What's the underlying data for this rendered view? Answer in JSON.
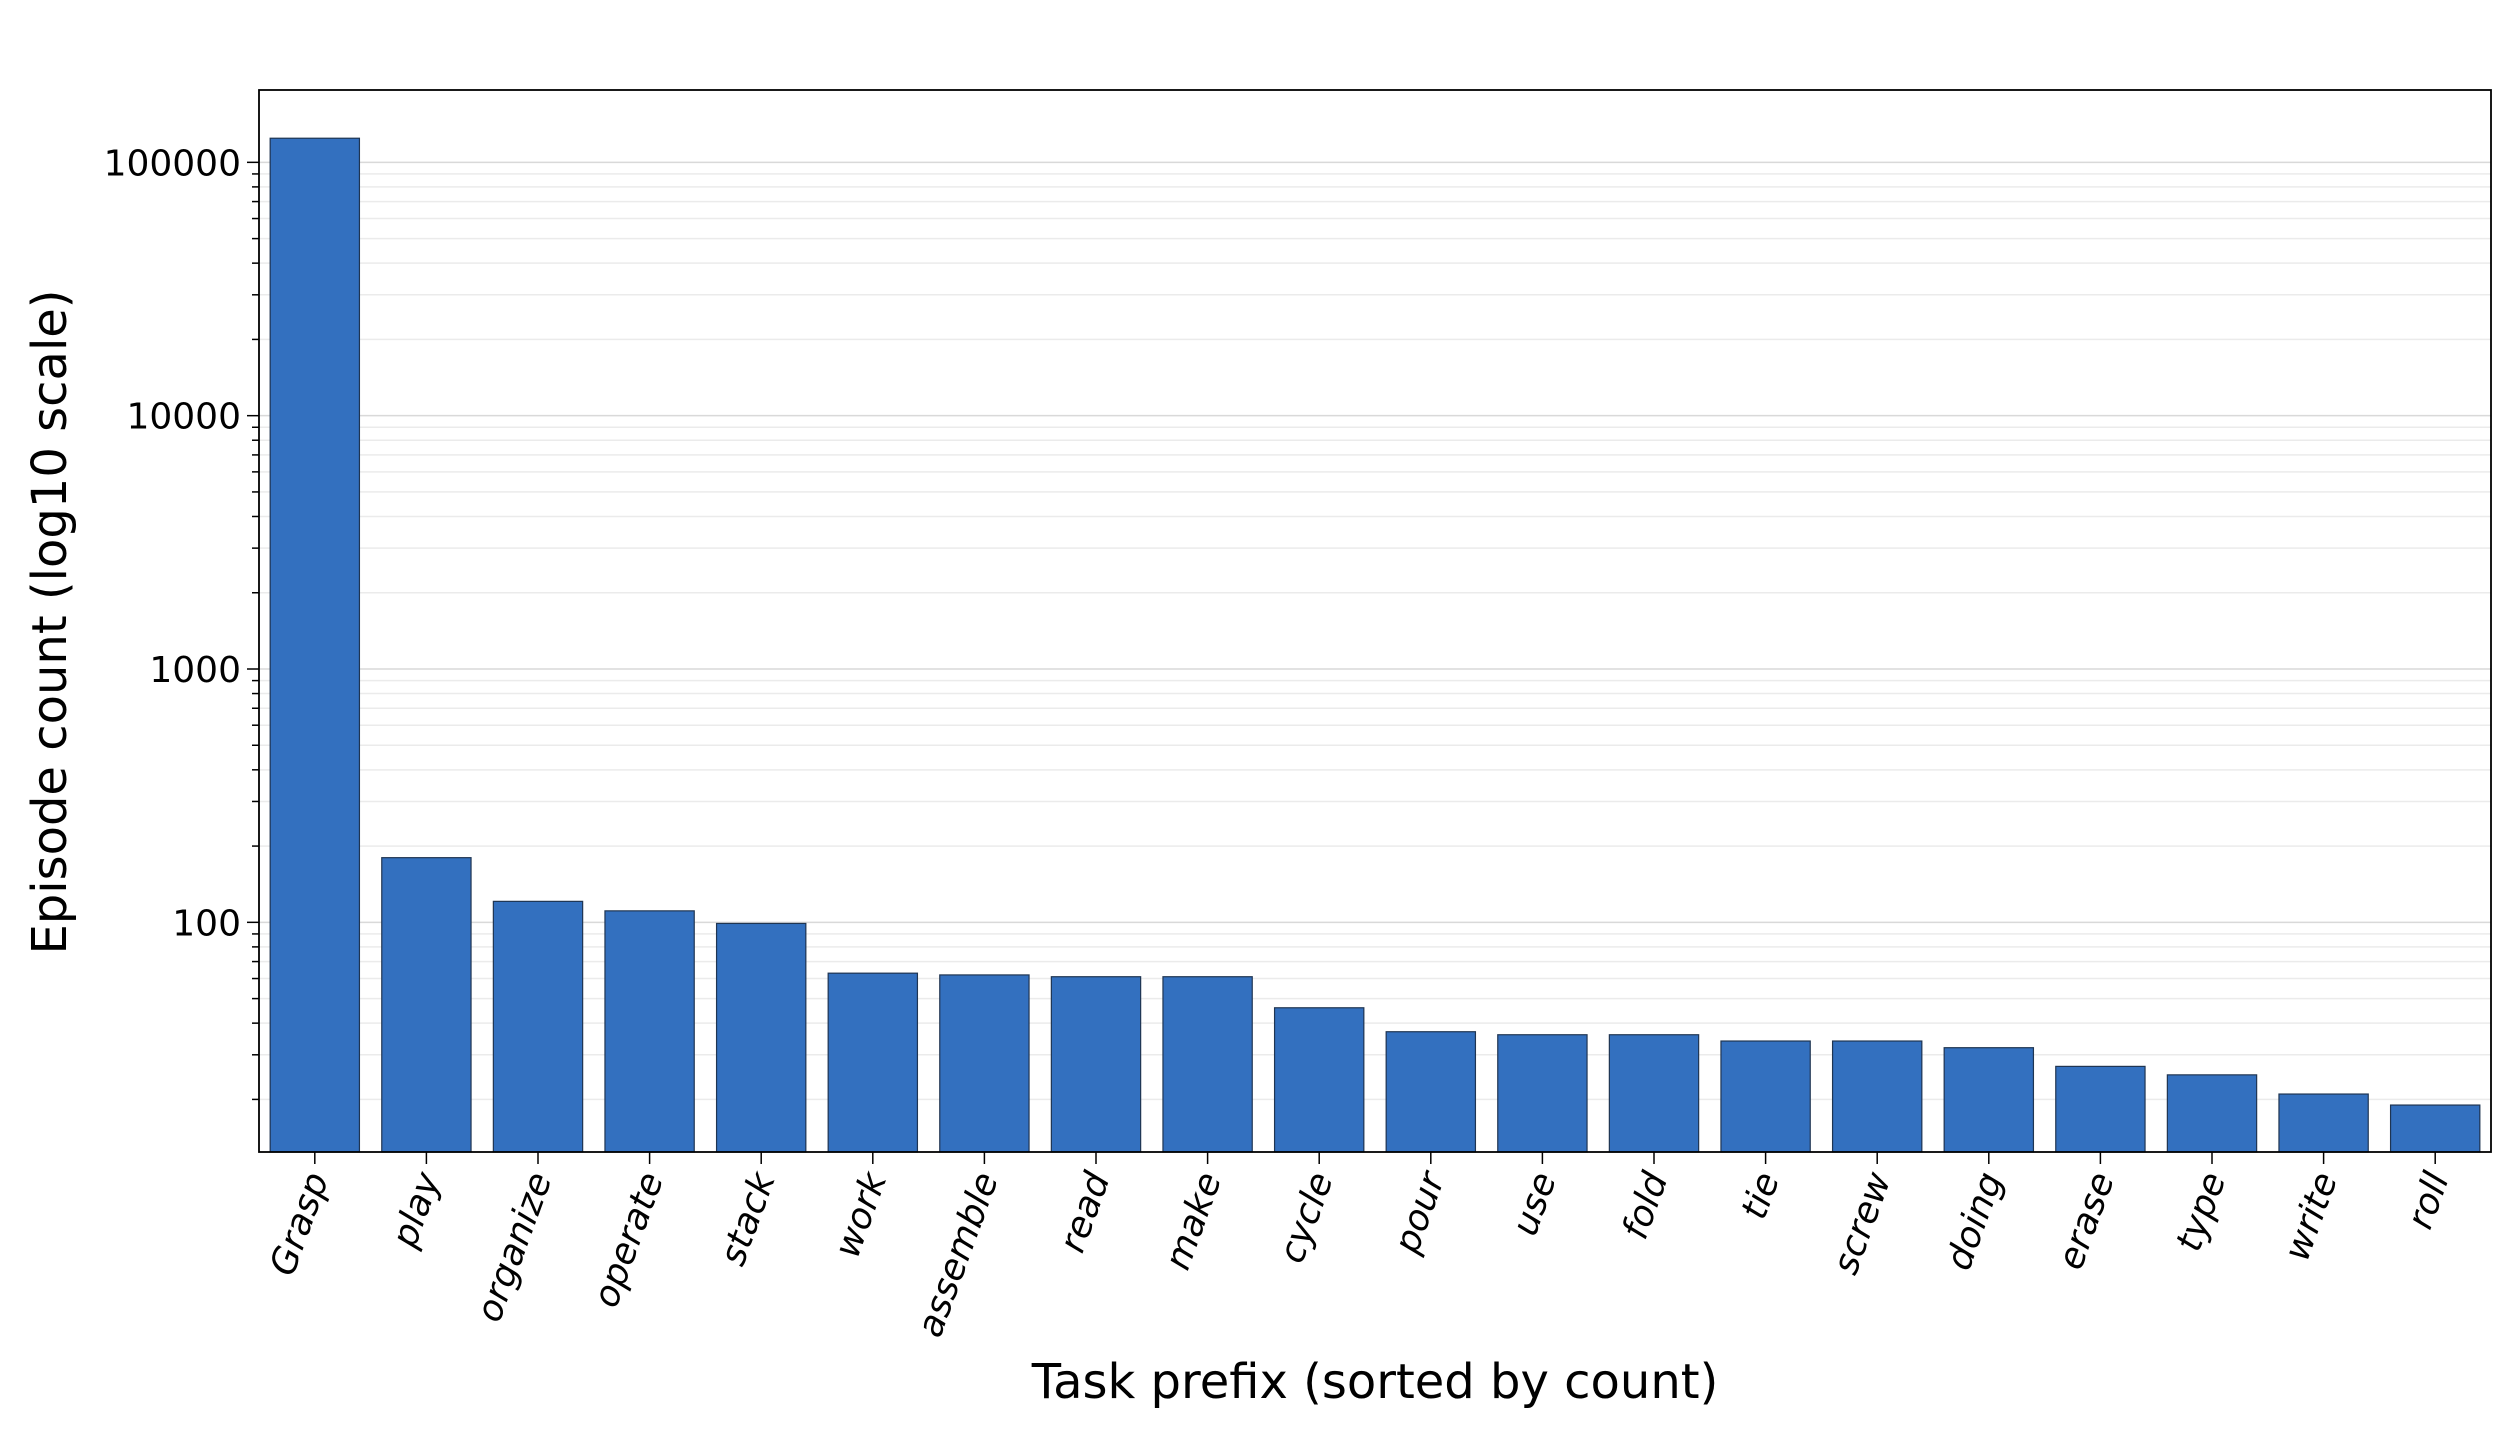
{
  "chart_data": {
    "type": "bar",
    "xlabel": "Task prefix (sorted by count)",
    "ylabel": "Episode count (log10 scale)",
    "categories": [
      "Grasp",
      "play",
      "organize",
      "operate",
      "stack",
      "work",
      "assemble",
      "read",
      "make",
      "cycle",
      "pour",
      "use",
      "fold",
      "tie",
      "screw",
      "doing",
      "erase",
      "type",
      "write",
      "roll"
    ],
    "values": [
      124500,
      180,
      121,
      111,
      99,
      63,
      62,
      61,
      61,
      46,
      37,
      36,
      36,
      34,
      34,
      32,
      27,
      25,
      21,
      19
    ],
    "color": "#3370bf",
    "log_scale": true,
    "ylim": [
      12.4,
      193000
    ],
    "yticks": [
      100,
      1000,
      10000,
      100000
    ],
    "grid": true
  }
}
